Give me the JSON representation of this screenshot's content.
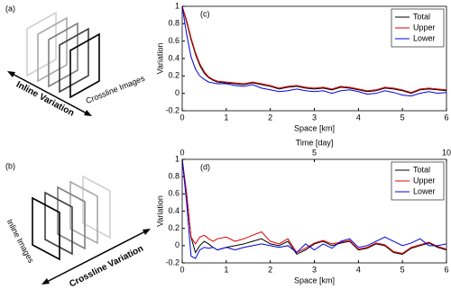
{
  "diagrams": {
    "a": {
      "label": "(a)",
      "arrow_label": "Inline Variation",
      "images_label": "Crossline Images"
    },
    "b": {
      "label": "(b)",
      "images_label": "Inline Images",
      "arrow_label": "Crossline Variation"
    }
  },
  "chart_data": [
    {
      "type": "line",
      "panel_label": "(c)",
      "xlabel": "Space [km]",
      "ylabel": "Variation",
      "xlim": [
        0,
        6
      ],
      "xticks": [
        0,
        1,
        2,
        3,
        4,
        5,
        6
      ],
      "ylim": [
        -0.2,
        1
      ],
      "yticks": [
        -0.2,
        0,
        0.2,
        0.4,
        0.6,
        0.8,
        1
      ],
      "legend": "upper right",
      "grid": false,
      "x": [
        0,
        0.1,
        0.2,
        0.3,
        0.4,
        0.5,
        0.6,
        0.7,
        0.8,
        1.0,
        1.2,
        1.4,
        1.6,
        1.8,
        2.0,
        2.2,
        2.4,
        2.6,
        2.8,
        3.0,
        3.2,
        3.4,
        3.6,
        3.8,
        4.0,
        4.2,
        4.4,
        4.6,
        4.8,
        5.0,
        5.2,
        5.4,
        5.6,
        5.8,
        6.0
      ],
      "series": [
        {
          "name": "Total",
          "color": "#000000",
          "values": [
            1,
            0.82,
            0.62,
            0.45,
            0.32,
            0.23,
            0.18,
            0.15,
            0.13,
            0.12,
            0.11,
            0.1,
            0.12,
            0.1,
            0.08,
            0.05,
            0.07,
            0.08,
            0.06,
            0.05,
            0.06,
            0.04,
            0.07,
            0.06,
            0.04,
            0.02,
            0.03,
            0.06,
            0.05,
            0.03,
            0.0,
            0.04,
            0.05,
            0.04,
            0.03
          ]
        },
        {
          "name": "Upper",
          "color": "#e00000",
          "values": [
            1,
            0.84,
            0.64,
            0.47,
            0.34,
            0.25,
            0.19,
            0.16,
            0.14,
            0.13,
            0.12,
            0.11,
            0.13,
            0.11,
            0.09,
            0.06,
            0.08,
            0.09,
            0.07,
            0.06,
            0.07,
            0.05,
            0.08,
            0.07,
            0.05,
            0.03,
            0.04,
            0.07,
            0.06,
            0.04,
            0.01,
            0.05,
            0.06,
            0.05,
            0.04
          ]
        },
        {
          "name": "Lower",
          "color": "#0000e0",
          "values": [
            1,
            0.68,
            0.42,
            0.28,
            0.2,
            0.16,
            0.13,
            0.12,
            0.11,
            0.11,
            0.09,
            0.08,
            0.1,
            0.06,
            0.04,
            0.02,
            0.03,
            0.05,
            0.03,
            0.02,
            0.03,
            0.0,
            0.03,
            0.04,
            0.02,
            -0.01,
            0.0,
            0.03,
            0.01,
            -0.02,
            -0.03,
            0.0,
            0.02,
            0.0,
            0.01
          ]
        }
      ]
    },
    {
      "type": "line",
      "panel_label": "(d)",
      "xlabel": "Space [km]",
      "ylabel": "Variation",
      "x2label": "Time [day]",
      "xlim": [
        0,
        6
      ],
      "xticks": [
        0,
        1,
        2,
        3,
        4,
        5,
        6
      ],
      "x2lim": [
        0,
        10
      ],
      "x2ticks": [
        0,
        5,
        10
      ],
      "ylim": [
        -0.2,
        1
      ],
      "yticks": [
        -0.2,
        0,
        0.2,
        0.4,
        0.6,
        0.8,
        1
      ],
      "legend": "upper right",
      "grid": false,
      "x": [
        0,
        0.1,
        0.2,
        0.3,
        0.4,
        0.5,
        0.6,
        0.7,
        0.8,
        1.0,
        1.2,
        1.4,
        1.6,
        1.8,
        2.0,
        2.2,
        2.4,
        2.6,
        2.8,
        3.0,
        3.2,
        3.4,
        3.6,
        3.8,
        4.0,
        4.2,
        4.4,
        4.6,
        4.8,
        5.0,
        5.2,
        5.4,
        5.6,
        5.8,
        6.0
      ],
      "series": [
        {
          "name": "Total",
          "color": "#000000",
          "values": [
            1,
            0.6,
            0.1,
            -0.08,
            0.0,
            0.05,
            0.02,
            -0.02,
            -0.05,
            -0.02,
            0.0,
            0.02,
            0.05,
            0.08,
            0.02,
            0.0,
            0.05,
            -0.1,
            -0.05,
            0.02,
            0.05,
            0.0,
            0.03,
            0.05,
            -0.05,
            -0.03,
            0.02,
            0.0,
            -0.08,
            -0.1,
            -0.03,
            0.0,
            0.03,
            -0.02,
            -0.05
          ]
        },
        {
          "name": "Upper",
          "color": "#e00000",
          "values": [
            1,
            0.6,
            0.1,
            0.02,
            0.1,
            0.12,
            0.08,
            0.05,
            0.08,
            0.1,
            0.05,
            0.08,
            0.12,
            0.16,
            0.05,
            0.02,
            0.08,
            -0.08,
            -0.03,
            0.03,
            0.06,
            0.02,
            0.04,
            0.06,
            -0.04,
            -0.02,
            0.03,
            0.01,
            -0.07,
            -0.09,
            -0.02,
            0.01,
            0.04,
            -0.01,
            -0.04
          ]
        },
        {
          "name": "Lower",
          "color": "#0000e0",
          "values": [
            1,
            0.5,
            -0.12,
            -0.15,
            -0.05,
            -0.02,
            -0.03,
            -0.02,
            -0.05,
            -0.02,
            -0.05,
            -0.02,
            0.0,
            0.02,
            0.0,
            -0.02,
            0.0,
            -0.08,
            0.02,
            -0.05,
            0.02,
            -0.03,
            0.05,
            0.08,
            -0.02,
            0.0,
            0.05,
            0.1,
            0.05,
            0.0,
            0.03,
            0.08,
            0.0,
            0.0,
            0.02
          ]
        }
      ]
    }
  ]
}
